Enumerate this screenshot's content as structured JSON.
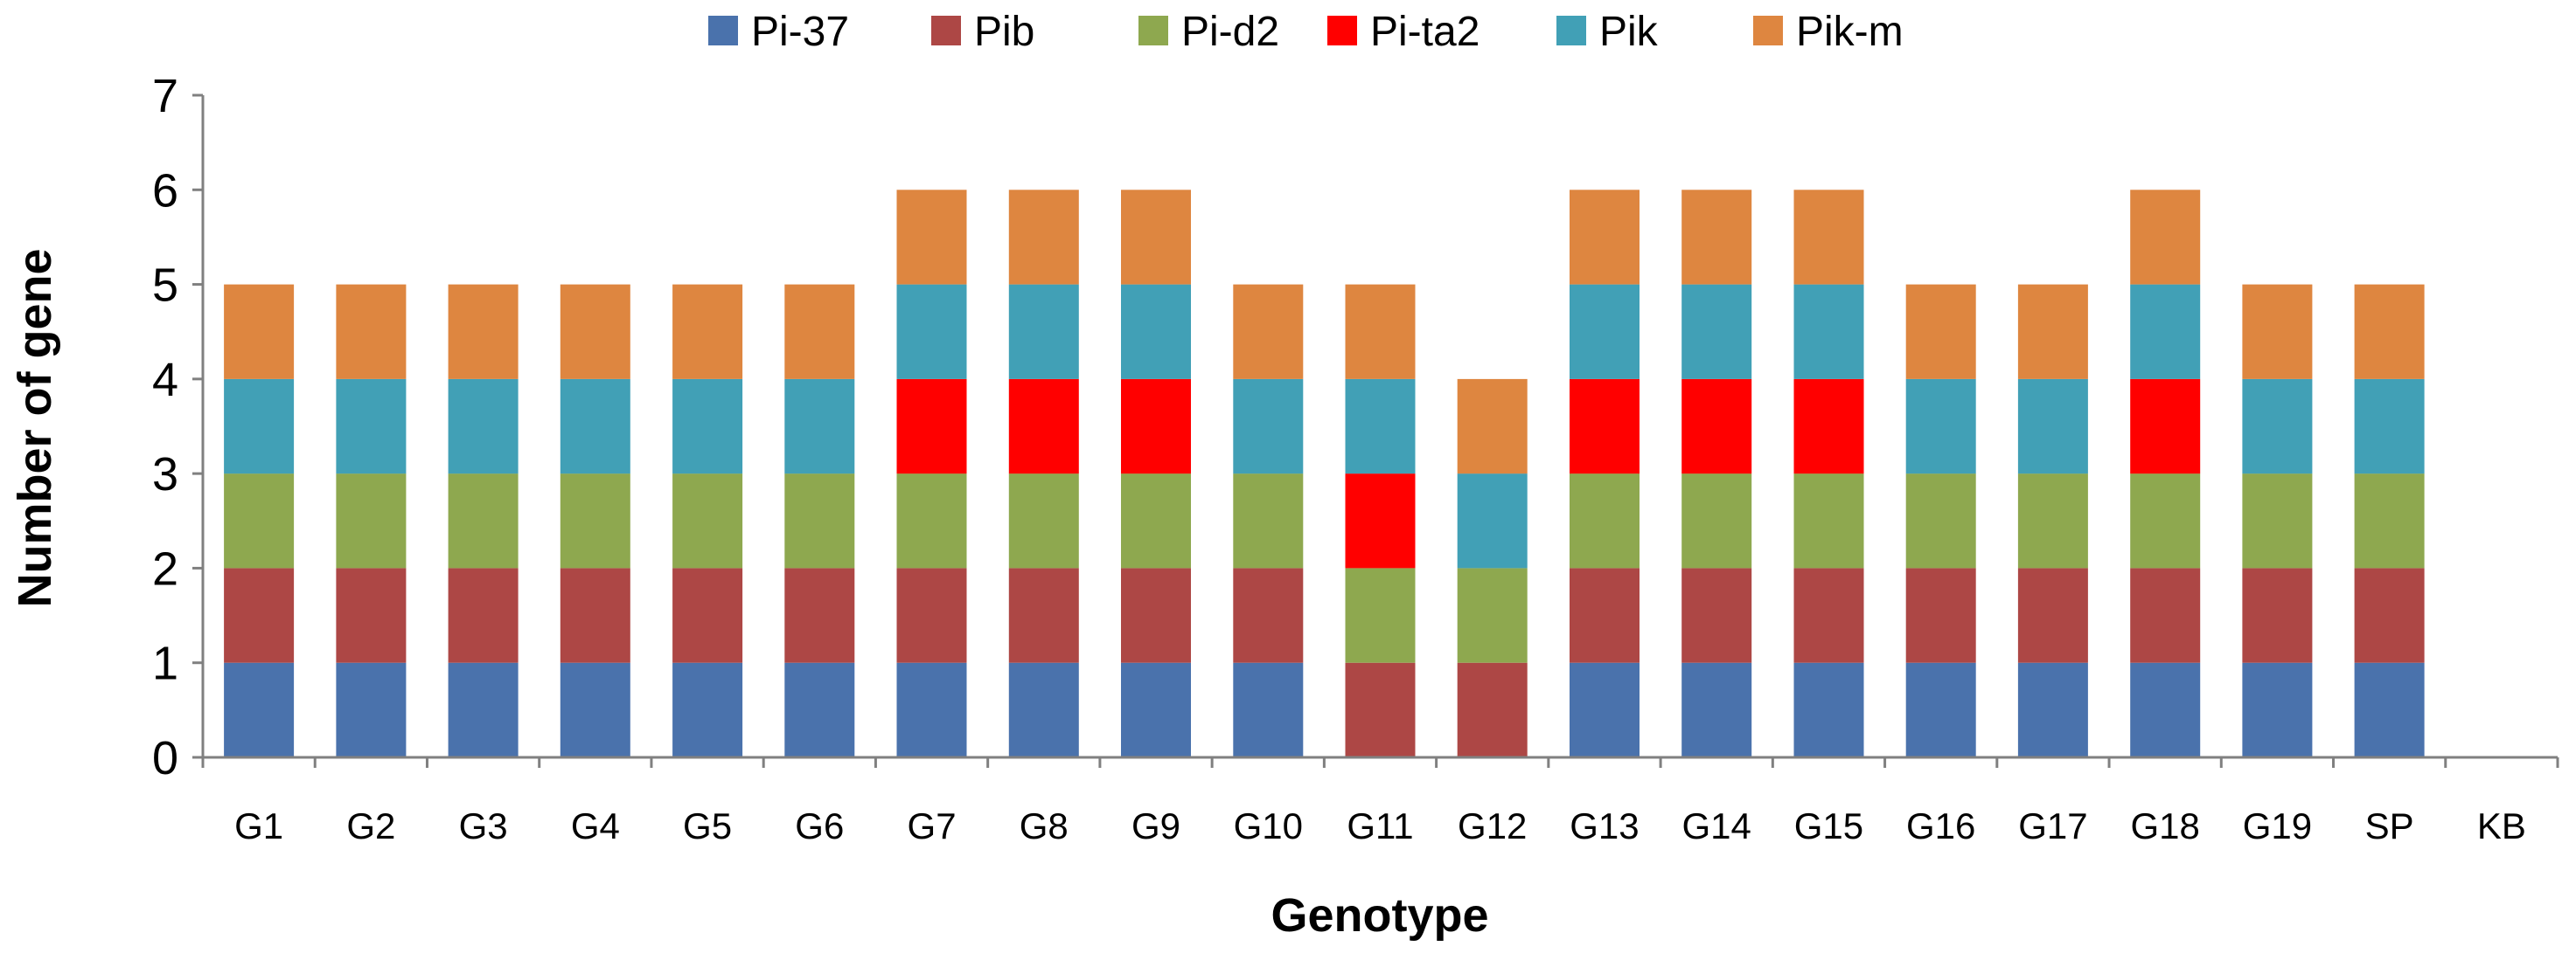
{
  "chart_data": {
    "type": "bar",
    "stacked": true,
    "title": "",
    "xlabel": "Genotype",
    "ylabel": "Number of gene",
    "ylim": [
      0,
      7
    ],
    "yticks": [
      0,
      1,
      2,
      3,
      4,
      5,
      6,
      7
    ],
    "grid": false,
    "legend_position": "top-center",
    "categories": [
      "G1",
      "G2",
      "G3",
      "G4",
      "G5",
      "G6",
      "G7",
      "G8",
      "G9",
      "G10",
      "G11",
      "G12",
      "G13",
      "G14",
      "G15",
      "G16",
      "G17",
      "G18",
      "G19",
      "SP",
      "KB"
    ],
    "series": [
      {
        "name": "Pi-37",
        "color": "#4a72ac",
        "values": [
          1,
          1,
          1,
          1,
          1,
          1,
          1,
          1,
          1,
          1,
          0,
          0,
          1,
          1,
          1,
          1,
          1,
          1,
          1,
          1,
          0
        ]
      },
      {
        "name": "Pib",
        "color": "#ad4745",
        "values": [
          1,
          1,
          1,
          1,
          1,
          1,
          1,
          1,
          1,
          1,
          1,
          1,
          1,
          1,
          1,
          1,
          1,
          1,
          1,
          1,
          0
        ]
      },
      {
        "name": "Pi-d2",
        "color": "#8ea84f",
        "values": [
          1,
          1,
          1,
          1,
          1,
          1,
          1,
          1,
          1,
          1,
          1,
          1,
          1,
          1,
          1,
          1,
          1,
          1,
          1,
          1,
          0
        ]
      },
      {
        "name": "Pi-ta2",
        "color": "#ff0000",
        "values": [
          0,
          0,
          0,
          0,
          0,
          0,
          1,
          1,
          1,
          0,
          1,
          0,
          1,
          1,
          1,
          0,
          0,
          1,
          0,
          0,
          0
        ]
      },
      {
        "name": "Pik",
        "color": "#41a0b6",
        "values": [
          1,
          1,
          1,
          1,
          1,
          1,
          1,
          1,
          1,
          1,
          1,
          1,
          1,
          1,
          1,
          1,
          1,
          1,
          1,
          1,
          0
        ]
      },
      {
        "name": "Pik-m",
        "color": "#de8640",
        "values": [
          1,
          1,
          1,
          1,
          1,
          1,
          1,
          1,
          1,
          1,
          1,
          1,
          1,
          1,
          1,
          1,
          1,
          1,
          1,
          1,
          0
        ]
      }
    ]
  }
}
